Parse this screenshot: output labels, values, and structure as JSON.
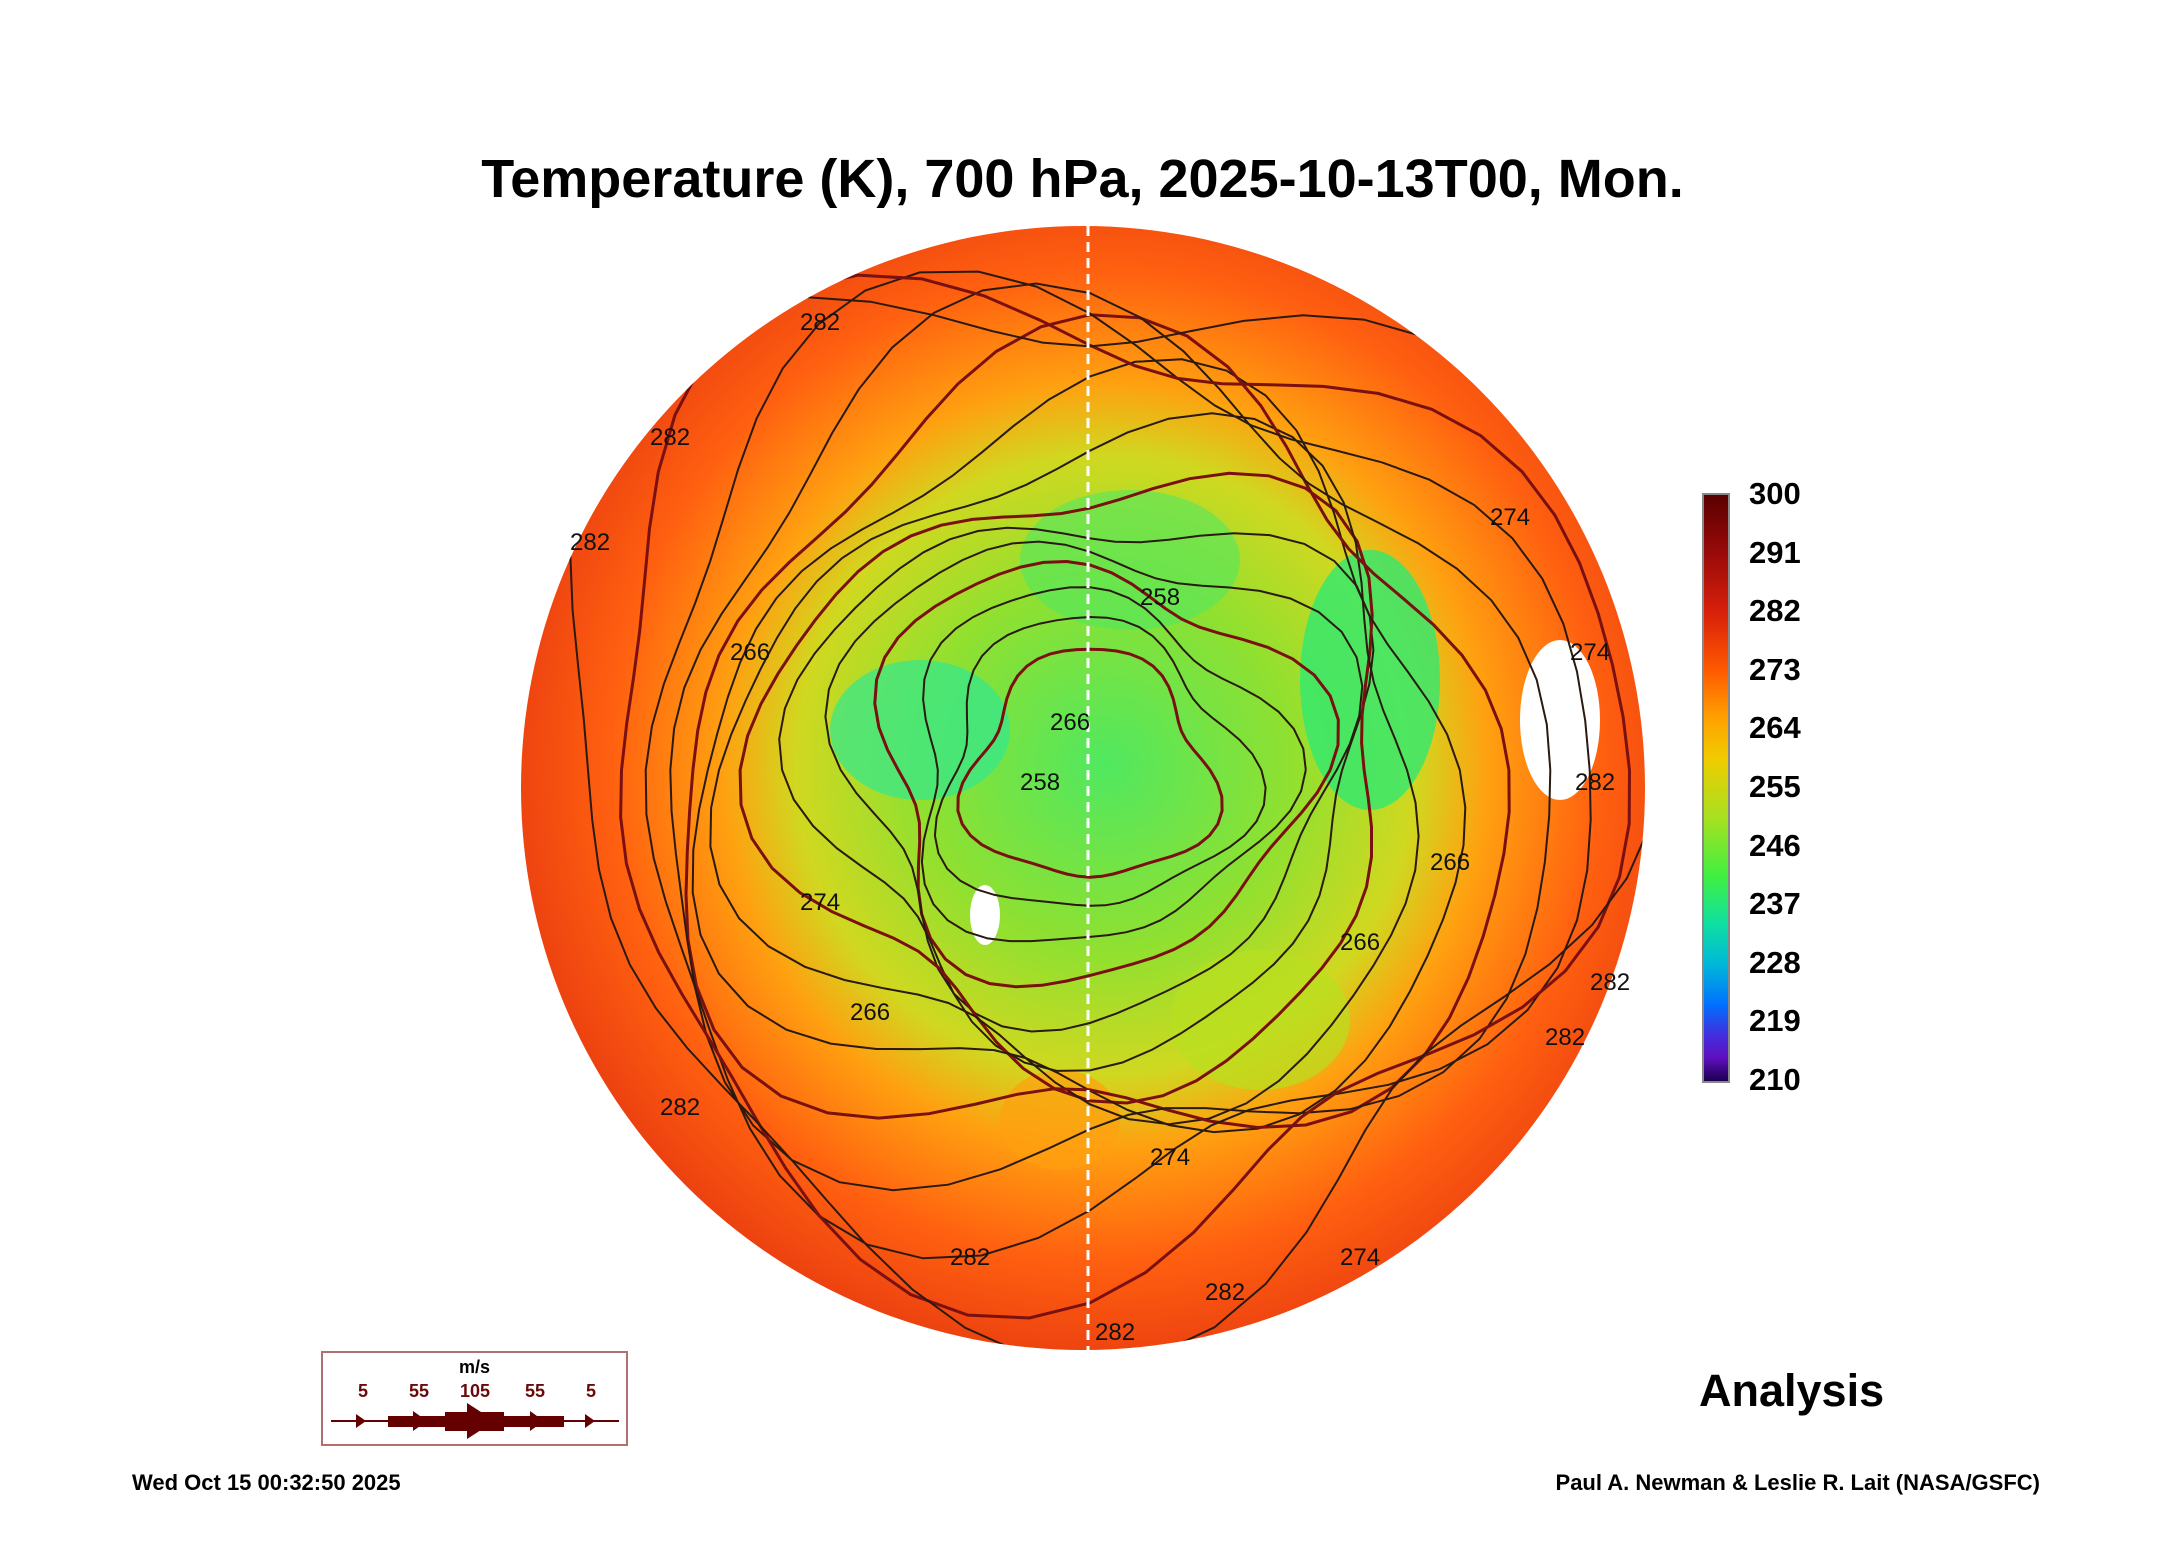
{
  "chart_data": {
    "type": "heatmap",
    "projection": "north polar orthographic",
    "title": "Temperature (K), 700 hPa, 2025-10-13T00, Mon.",
    "variable": "Temperature",
    "units": "K",
    "level": "700 hPa",
    "colorbar": {
      "ticks": [
        "300",
        "291",
        "282",
        "273",
        "264",
        "255",
        "246",
        "237",
        "228",
        "219",
        "210"
      ],
      "range": [
        210,
        300
      ]
    },
    "contour_labels": [
      "282",
      "282",
      "274",
      "266",
      "266",
      "258",
      "274",
      "282",
      "282",
      "282",
      "266",
      "274",
      "274",
      "266",
      "282",
      "274",
      "282",
      "282",
      "282",
      "282",
      "266",
      "258"
    ],
    "wind_legend": {
      "unit": "m/s",
      "labels": [
        "5",
        "55",
        "105",
        "55",
        "5"
      ]
    }
  },
  "analysis_label": "Analysis",
  "timestamp": "Wed Oct 15 00:32:50 2025",
  "credit": "Paul A. Newman & Leslie R. Lait (NASA/GSFC)"
}
